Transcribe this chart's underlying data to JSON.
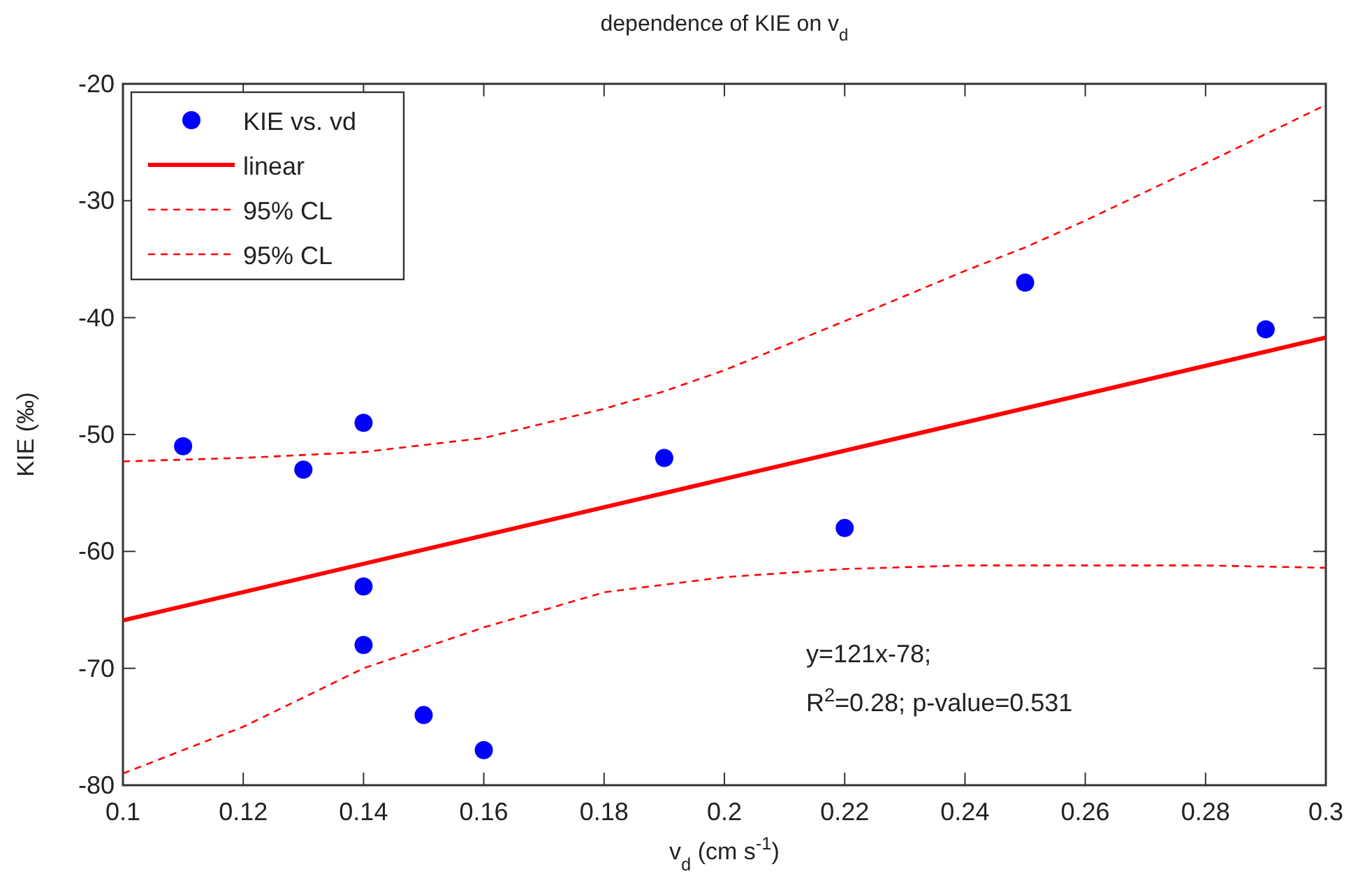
{
  "chart_data": {
    "type": "scatter",
    "title": "dependence of KIE on v$_{d}$",
    "xlabel": "v$_{d}$ (cm s$^{-1}$)",
    "ylabel": "KIE (‰)",
    "xlim": [
      0.1,
      0.3
    ],
    "xticks": [
      0.1,
      0.12,
      0.14,
      0.16,
      0.18,
      0.2,
      0.22,
      0.24,
      0.26,
      0.28,
      0.3
    ],
    "ylim": [
      -80,
      -20
    ],
    "yticks": [
      -80,
      -70,
      -60,
      -50,
      -40,
      -30,
      -20
    ],
    "grid": false,
    "legend": "top left",
    "series": [
      {
        "name": "KIE vs. vd",
        "marker": "circle",
        "color": "#0000ff",
        "x": [
          0.11,
          0.13,
          0.14,
          0.14,
          0.14,
          0.15,
          0.16,
          0.19,
          0.22,
          0.25,
          0.29
        ],
        "values": [
          -51,
          -53,
          -49,
          -63,
          -68,
          -74,
          -77,
          -52,
          -58,
          -37,
          -41
        ]
      },
      {
        "name": "linear",
        "type": "line",
        "marker": "none",
        "line_style": "solid",
        "color": "#ff0000",
        "x": [
          0.1,
          0.3
        ],
        "values": [
          -65.9,
          -41.7
        ]
      },
      {
        "name": "95% CL",
        "type": "line",
        "marker": "none",
        "line_style": "dashed",
        "color": "#ff0000",
        "x": [
          0.1,
          0.12,
          0.14,
          0.16,
          0.18,
          0.19,
          0.2,
          0.22,
          0.24,
          0.25,
          0.26,
          0.28,
          0.3
        ],
        "values": [
          -52.3,
          -52,
          -51.5,
          -50.3,
          -47.8,
          -46.3,
          -44.5,
          -40.3,
          -36,
          -34,
          -31.7,
          -26.8,
          -21.8
        ]
      },
      {
        "name": "95% CL",
        "type": "line",
        "marker": "none",
        "line_style": "dashed",
        "color": "#ff0000",
        "x": [
          0.1,
          0.12,
          0.14,
          0.16,
          0.18,
          0.2,
          0.22,
          0.24,
          0.26,
          0.28,
          0.3
        ],
        "values": [
          -79,
          -75,
          -70,
          -66.5,
          -63.5,
          -62.2,
          -61.5,
          -61.2,
          -61.2,
          -61.2,
          -61.4
        ]
      }
    ],
    "annotations": [
      "y=121x-78;",
      "R$^{2}$=0.28; p-value=0.531"
    ]
  }
}
